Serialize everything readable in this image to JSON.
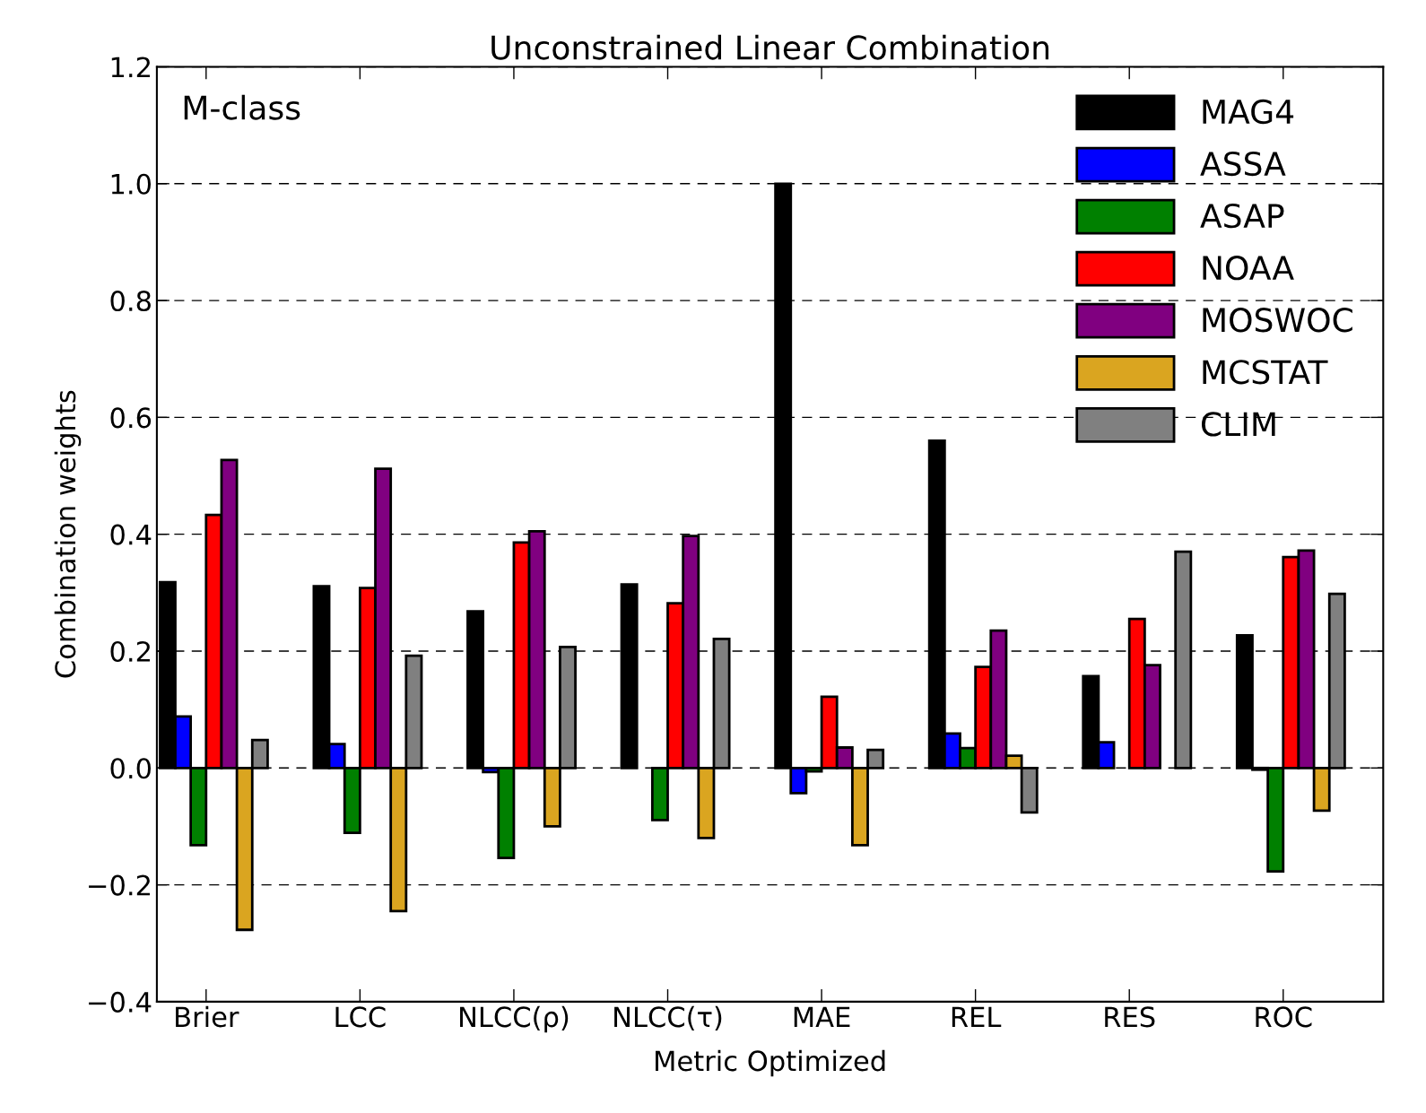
{
  "chart_data": {
    "type": "bar",
    "title": "Unconstrained Linear Combination",
    "xlabel": "Metric Optimized",
    "ylabel": "Combination weights",
    "annotations": [
      "M-class"
    ],
    "categories": [
      "Brier",
      "LCC",
      "NLCC(ρ)",
      "NLCC(τ)",
      "MAE",
      "REL",
      "RES",
      "ROC"
    ],
    "series": [
      {
        "name": "MAG4",
        "color": "#000000",
        "values": [
          0.318,
          0.311,
          0.268,
          0.314,
          1.0,
          0.56,
          0.157,
          0.227
        ]
      },
      {
        "name": "ASSA",
        "color": "#0000ff",
        "values": [
          0.088,
          0.041,
          -0.007,
          null,
          -0.043,
          0.059,
          0.044,
          -0.003
        ]
      },
      {
        "name": "ASAP",
        "color": "#008000",
        "values": [
          -0.132,
          -0.111,
          -0.154,
          -0.089,
          -0.006,
          0.034,
          null,
          -0.177
        ]
      },
      {
        "name": "NOAA",
        "color": "#ff0000",
        "values": [
          0.433,
          0.308,
          0.386,
          0.282,
          0.122,
          0.173,
          0.255,
          0.361
        ]
      },
      {
        "name": "MOSWOC",
        "color": "#800080",
        "values": [
          0.527,
          0.512,
          0.405,
          0.397,
          0.035,
          0.235,
          0.176,
          0.372
        ]
      },
      {
        "name": "MCSTAT",
        "color": "#daa520",
        "values": [
          -0.277,
          -0.245,
          -0.1,
          -0.12,
          -0.132,
          0.021,
          null,
          -0.073
        ]
      },
      {
        "name": "CLIM",
        "color": "#808080",
        "values": [
          0.048,
          0.192,
          0.207,
          0.221,
          0.031,
          -0.076,
          0.37,
          0.298
        ]
      }
    ],
    "ylim": [
      -0.4,
      1.2
    ],
    "yticks": [
      {
        "value": -0.4,
        "label": "−0.4"
      },
      {
        "value": -0.2,
        "label": "−0.2"
      },
      {
        "value": 0.0,
        "label": "0.0"
      },
      {
        "value": 0.2,
        "label": "0.2"
      },
      {
        "value": 0.4,
        "label": "0.4"
      },
      {
        "value": 0.6,
        "label": "0.6"
      },
      {
        "value": 0.8,
        "label": "0.8"
      },
      {
        "value": 1.0,
        "label": "1.0"
      },
      {
        "value": 1.2,
        "label": "1.2"
      }
    ],
    "grid": "y",
    "legend": "top right"
  }
}
